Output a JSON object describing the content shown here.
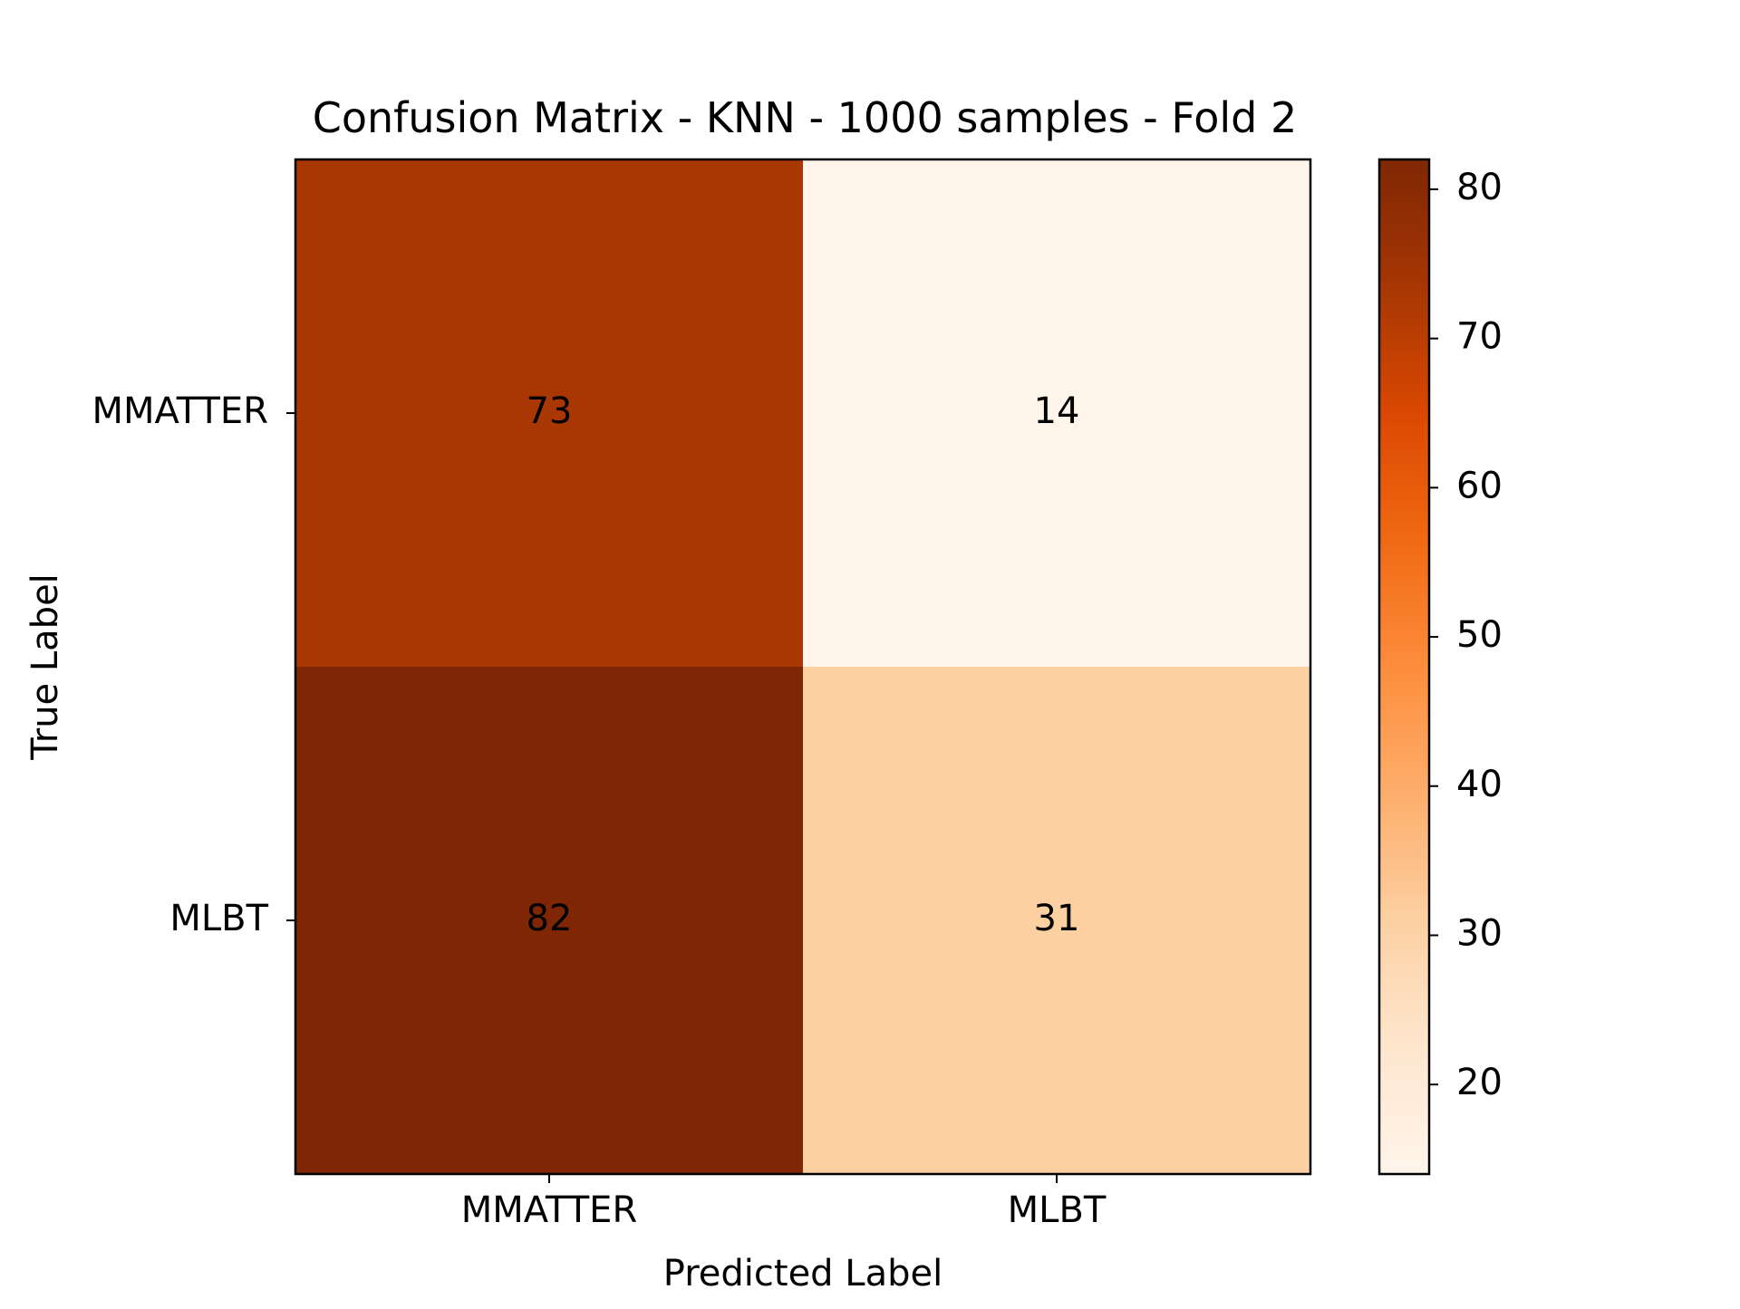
{
  "chart_data": {
    "type": "heatmap",
    "title": "Confusion Matrix - KNN - 1000 samples - Fold 2",
    "xlabel": "Predicted Label",
    "ylabel": "True Label",
    "x_categories": [
      "MMATTER",
      "MLBT"
    ],
    "y_categories": [
      "MMATTER",
      "MLBT"
    ],
    "values": [
      [
        73,
        14
      ],
      [
        82,
        31
      ]
    ],
    "colormap": "Oranges",
    "colorbar": {
      "range": [
        14,
        82
      ],
      "ticks": [
        20,
        30,
        40,
        50,
        60,
        70,
        80
      ],
      "tick_labels": [
        "20",
        "30",
        "40",
        "50",
        "60",
        "70",
        "80"
      ],
      "placement": "right"
    },
    "colors": {
      "light": "#fff5eb",
      "dark": "#7f2704"
    }
  }
}
